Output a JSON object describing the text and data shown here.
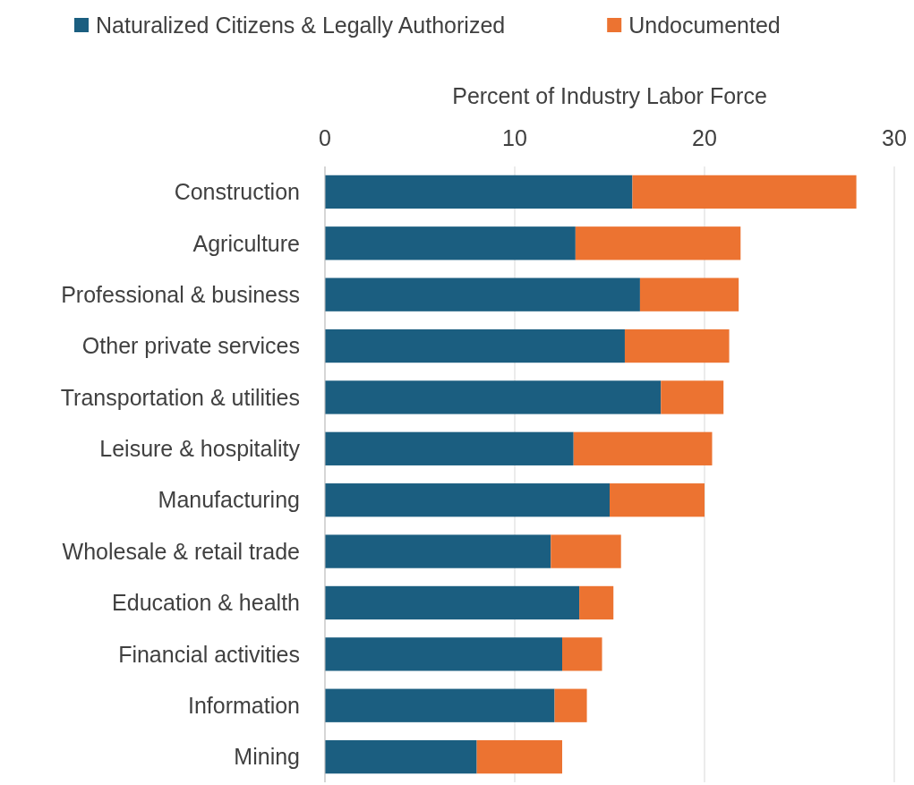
{
  "chart_data": {
    "type": "bar",
    "orientation": "horizontal",
    "stacked": true,
    "xlabel": "Percent of Industry Labor Force",
    "categories": [
      "Construction",
      "Agriculture",
      "Professional & business",
      "Other private services",
      "Transportation & utilities",
      "Leisure & hospitality",
      "Manufacturing",
      "Wholesale & retail trade",
      "Education & health",
      "Financial activities",
      "Information",
      "Mining"
    ],
    "series": [
      {
        "name": "Naturalized Citizens & Legally Authorized",
        "color": "#1b5e80",
        "values": [
          16.2,
          13.2,
          16.6,
          15.8,
          17.7,
          13.1,
          15.0,
          11.9,
          13.4,
          12.5,
          12.1,
          8.0
        ]
      },
      {
        "name": "Undocumented",
        "color": "#ec7331",
        "values": [
          11.8,
          8.7,
          5.2,
          5.5,
          3.3,
          7.3,
          5.0,
          3.7,
          1.8,
          2.1,
          1.7,
          4.5
        ]
      }
    ],
    "xlim": [
      0,
      30
    ],
    "xticks": [
      0,
      10,
      20,
      30
    ],
    "grid": "x",
    "legend": "top left"
  }
}
